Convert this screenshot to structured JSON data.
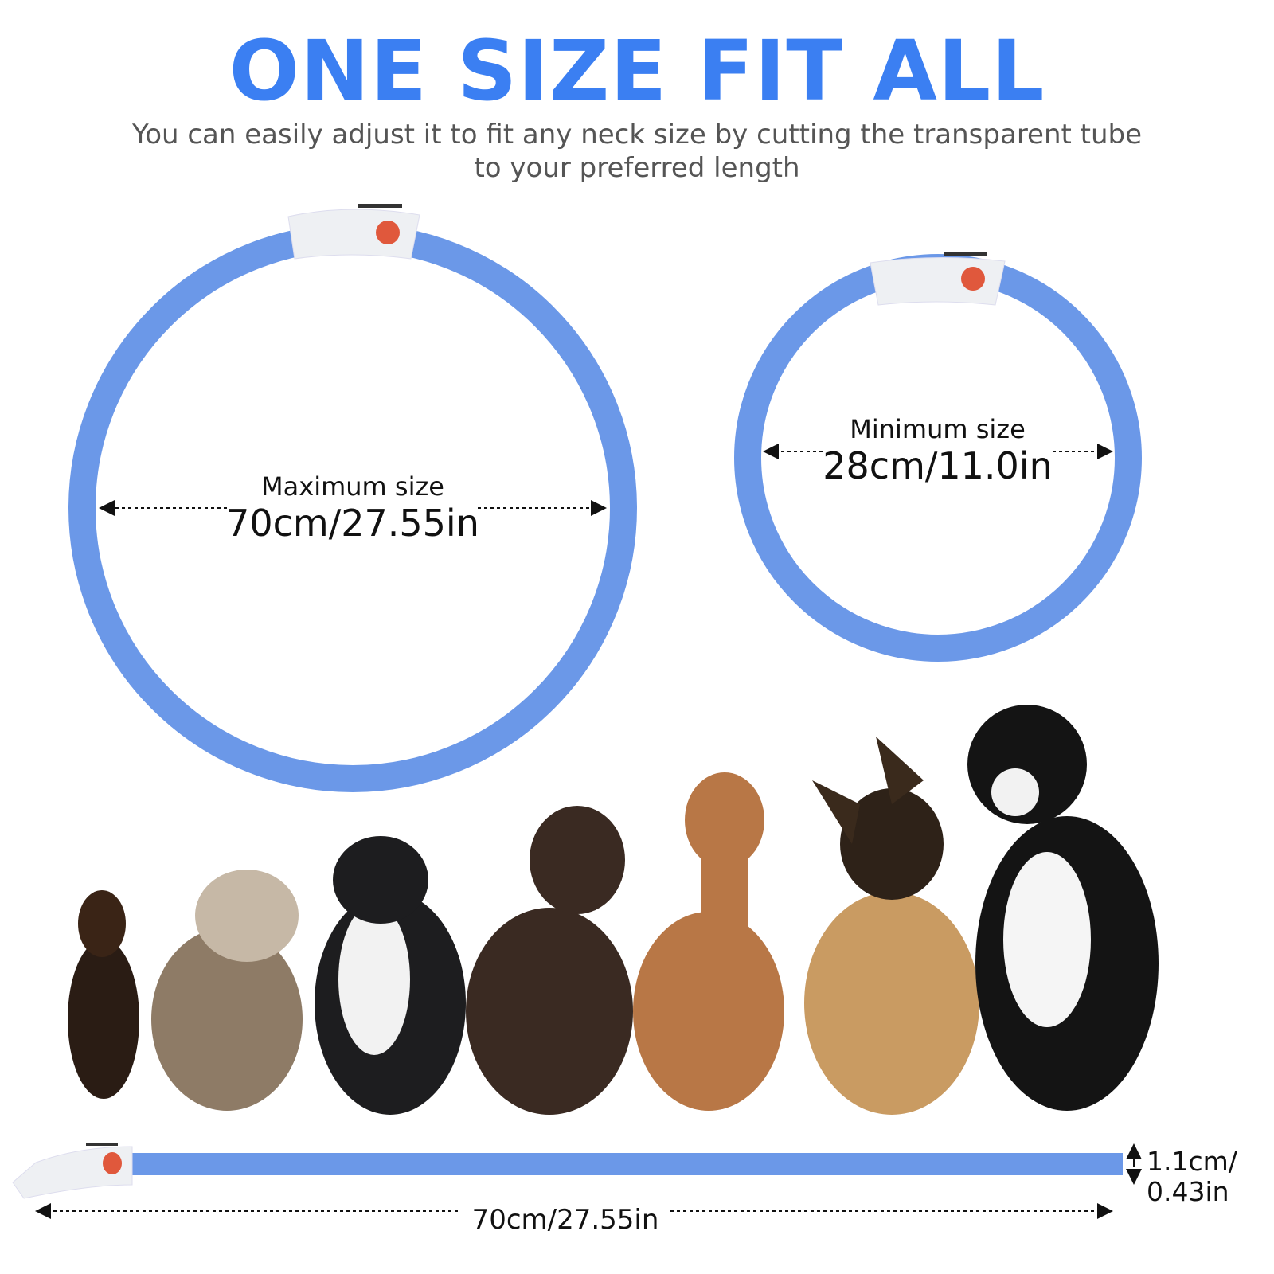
{
  "header": {
    "title": "ONE SIZE FIT ALL",
    "subtitle_line1": "You can easily adjust it to fit any neck size by cutting the transparent tube",
    "subtitle_line2": "to your preferred length"
  },
  "max_ring": {
    "label": "Maximum size",
    "value": "70cm/27.55in"
  },
  "min_ring": {
    "label": "Minimum size",
    "value": "28cm/11.0in"
  },
  "strip": {
    "length": "70cm/27.55in",
    "thickness_line1": "1.1cm/",
    "thickness_line2": "0.43in"
  },
  "colors": {
    "accent": "#3b7ff2",
    "tube": "#6b98e8",
    "button": "#e0583c"
  }
}
